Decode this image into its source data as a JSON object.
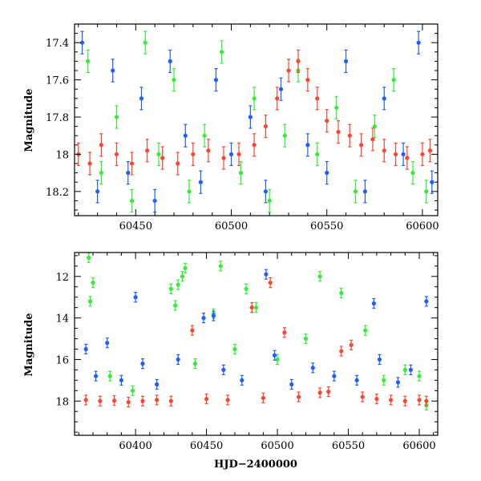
{
  "chart_data": [
    {
      "type": "scatter",
      "panel": "top",
      "xlabel": "",
      "ylabel": "Magnitude",
      "xlim": [
        60418,
        60608
      ],
      "ylim": [
        18.33,
        17.3
      ],
      "y_inverted": true,
      "xticks": [
        60450,
        60500,
        60550,
        60600
      ],
      "xtick_labels": [
        "60450",
        "60500",
        "60550",
        "60600"
      ],
      "yticks": [
        17.4,
        17.6,
        17.8,
        18,
        18.2
      ],
      "ytick_labels": [
        "17.4",
        "17.6",
        "17.8",
        "18",
        "18.2"
      ],
      "error_bars": true,
      "series": [
        {
          "color": "#33ee33",
          "points": [
            [
              60425,
              17.5
            ],
            [
              60432,
              18.1
            ],
            [
              60440,
              17.8
            ],
            [
              60448,
              18.25
            ],
            [
              60455,
              17.4
            ],
            [
              60462,
              18.0
            ],
            [
              60470,
              17.6
            ],
            [
              60478,
              18.2
            ],
            [
              60486,
              17.9
            ],
            [
              60495,
              17.45
            ],
            [
              60505,
              18.1
            ],
            [
              60512,
              17.7
            ],
            [
              60520,
              18.25
            ],
            [
              60528,
              17.9
            ],
            [
              60535,
              17.55
            ],
            [
              60545,
              18.0
            ],
            [
              60555,
              17.75
            ],
            [
              60565,
              18.2
            ],
            [
              60575,
              17.85
            ],
            [
              60585,
              17.6
            ],
            [
              60595,
              18.1
            ],
            [
              60602,
              18.2
            ]
          ]
        },
        {
          "color": "#1f5fff",
          "points": [
            [
              60422,
              17.4
            ],
            [
              60430,
              18.2
            ],
            [
              60438,
              17.55
            ],
            [
              60446,
              18.1
            ],
            [
              60453,
              17.7
            ],
            [
              60460,
              18.25
            ],
            [
              60468,
              17.5
            ],
            [
              60476,
              17.9
            ],
            [
              60484,
              18.15
            ],
            [
              60492,
              17.6
            ],
            [
              60500,
              18.0
            ],
            [
              60510,
              17.8
            ],
            [
              60518,
              18.2
            ],
            [
              60526,
              17.65
            ],
            [
              60540,
              17.95
            ],
            [
              60550,
              18.1
            ],
            [
              60560,
              17.5
            ],
            [
              60570,
              18.2
            ],
            [
              60580,
              17.7
            ],
            [
              60590,
              18.0
            ],
            [
              60598,
              17.4
            ],
            [
              60605,
              18.15
            ]
          ]
        },
        {
          "color": "#ff4530",
          "points": [
            [
              60420,
              18.0
            ],
            [
              60426,
              18.05
            ],
            [
              60432,
              17.95
            ],
            [
              60440,
              18.0
            ],
            [
              60448,
              18.05
            ],
            [
              60456,
              17.98
            ],
            [
              60464,
              18.02
            ],
            [
              60472,
              18.05
            ],
            [
              60480,
              18.0
            ],
            [
              60488,
              17.98
            ],
            [
              60496,
              18.02
            ],
            [
              60504,
              18.0
            ],
            [
              60512,
              17.95
            ],
            [
              60518,
              17.85
            ],
            [
              60524,
              17.7
            ],
            [
              60530,
              17.55
            ],
            [
              60535,
              17.5
            ],
            [
              60540,
              17.6
            ],
            [
              60545,
              17.7
            ],
            [
              60550,
              17.82
            ],
            [
              60556,
              17.88
            ],
            [
              60562,
              17.9
            ],
            [
              60568,
              17.95
            ],
            [
              60574,
              17.92
            ],
            [
              60580,
              17.98
            ],
            [
              60586,
              18.0
            ],
            [
              60592,
              18.02
            ],
            [
              60600,
              18.0
            ],
            [
              60604,
              17.98
            ]
          ]
        }
      ]
    },
    {
      "type": "scatter",
      "panel": "bottom",
      "xlabel": "HJD−2400000",
      "ylabel": "Magnitude",
      "xlim": [
        60357,
        60613
      ],
      "ylim": [
        19.65,
        10.85
      ],
      "y_inverted": true,
      "xticks": [
        60400,
        60450,
        60500,
        60550,
        60600
      ],
      "xtick_labels": [
        "60400",
        "60450",
        "60500",
        "60550",
        "60600"
      ],
      "yticks": [
        12,
        14,
        16,
        18
      ],
      "ytick_labels": [
        "12",
        "14",
        "16",
        "18"
      ],
      "error_bars": true,
      "series": [
        {
          "color": "#33ee33",
          "points": [
            [
              60367,
              11.1
            ],
            [
              60368,
              13.2
            ],
            [
              60370,
              12.3
            ],
            [
              60382,
              16.8
            ],
            [
              60398,
              17.5
            ],
            [
              60425,
              12.6
            ],
            [
              60428,
              13.4
            ],
            [
              60430,
              12.4
            ],
            [
              60433,
              12.0
            ],
            [
              60435,
              11.6
            ],
            [
              60442,
              16.2
            ],
            [
              60455,
              13.8
            ],
            [
              60460,
              11.5
            ],
            [
              60470,
              15.5
            ],
            [
              60478,
              12.6
            ],
            [
              60485,
              13.5
            ],
            [
              60500,
              16.0
            ],
            [
              60520,
              15.0
            ],
            [
              60530,
              12.0
            ],
            [
              60545,
              12.8
            ],
            [
              60562,
              14.6
            ],
            [
              60575,
              17.0
            ],
            [
              60590,
              16.5
            ],
            [
              60600,
              16.8
            ],
            [
              60605,
              18.2
            ]
          ]
        },
        {
          "color": "#1f5fff",
          "points": [
            [
              60365,
              15.5
            ],
            [
              60372,
              16.8
            ],
            [
              60380,
              15.2
            ],
            [
              60390,
              17.0
            ],
            [
              60400,
              13.0
            ],
            [
              60405,
              16.2
            ],
            [
              60415,
              17.2
            ],
            [
              60430,
              16.0
            ],
            [
              60448,
              14.0
            ],
            [
              60455,
              13.9
            ],
            [
              60462,
              16.5
            ],
            [
              60475,
              17.0
            ],
            [
              60492,
              11.9
            ],
            [
              60498,
              15.8
            ],
            [
              60510,
              17.2
            ],
            [
              60525,
              16.4
            ],
            [
              60540,
              16.8
            ],
            [
              60556,
              17.0
            ],
            [
              60568,
              13.3
            ],
            [
              60572,
              16.0
            ],
            [
              60585,
              17.1
            ],
            [
              60594,
              16.5
            ],
            [
              60605,
              13.2
            ]
          ]
        },
        {
          "color": "#ff4530",
          "points": [
            [
              60365,
              17.95
            ],
            [
              60375,
              18.0
            ],
            [
              60385,
              17.98
            ],
            [
              60395,
              18.05
            ],
            [
              60405,
              18.0
            ],
            [
              60415,
              17.95
            ],
            [
              60425,
              18.0
            ],
            [
              60440,
              14.6
            ],
            [
              60450,
              17.9
            ],
            [
              60465,
              17.95
            ],
            [
              60482,
              13.5
            ],
            [
              60490,
              17.85
            ],
            [
              60495,
              12.3
            ],
            [
              60505,
              14.7
            ],
            [
              60515,
              17.8
            ],
            [
              60530,
              17.6
            ],
            [
              60536,
              17.55
            ],
            [
              60545,
              15.6
            ],
            [
              60552,
              15.3
            ],
            [
              60560,
              17.8
            ],
            [
              60570,
              17.9
            ],
            [
              60580,
              17.95
            ],
            [
              60590,
              18.0
            ],
            [
              60600,
              17.95
            ],
            [
              60605,
              18.0
            ]
          ]
        }
      ]
    }
  ]
}
